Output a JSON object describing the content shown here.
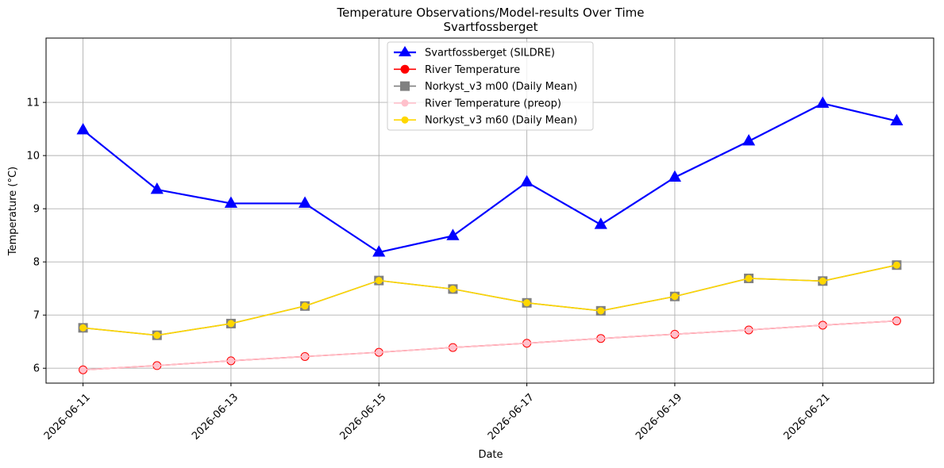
{
  "chart_data": {
    "type": "line",
    "title": "Temperature Observations/Model-results Over Time",
    "subtitle": "Svartfossberget",
    "xlabel": "Date",
    "ylabel": "Temperature (°C)",
    "x": [
      "2026-06-11",
      "2026-06-12",
      "2026-06-13",
      "2026-06-14",
      "2026-06-15",
      "2026-06-16",
      "2026-06-17",
      "2026-06-18",
      "2026-06-19",
      "2026-06-20",
      "2026-06-21",
      "2026-06-22"
    ],
    "x_tick_labels": [
      "2026-06-11",
      "2026-06-13",
      "2026-06-15",
      "2026-06-17",
      "2026-06-19",
      "2026-06-21"
    ],
    "xlim": [
      "2026-06-10.5",
      "2026-06-22.5"
    ],
    "ylim": [
      5.72,
      12.21
    ],
    "y_ticks": [
      6,
      7,
      8,
      9,
      10,
      11
    ],
    "grid": true,
    "legend_position": "upper center",
    "series": [
      {
        "name": "Svartfossberget (SILDRE)",
        "color": "#0000ff",
        "marker": "triangle",
        "values": [
          10.48,
          9.36,
          9.1,
          9.1,
          8.18,
          8.49,
          9.5,
          8.7,
          9.59,
          10.27,
          10.98,
          10.65
        ]
      },
      {
        "name": "River Temperature",
        "color": "#ff0000",
        "marker": "circle",
        "values": [
          5.97,
          6.05,
          6.14,
          6.22,
          6.3,
          6.39,
          6.47,
          6.56,
          6.64,
          6.72,
          6.81,
          6.89
        ]
      },
      {
        "name": "Norkyst_v3 m00 (Daily Mean)",
        "color": "#808080",
        "marker": "square",
        "values": [
          6.76,
          6.62,
          6.84,
          7.17,
          7.65,
          7.49,
          7.23,
          7.08,
          7.35,
          7.69,
          7.64,
          7.94
        ]
      },
      {
        "name": "River Temperature (preop)",
        "color": "#ffc0cb",
        "marker": "circle",
        "values": [
          5.97,
          6.05,
          6.14,
          6.22,
          6.3,
          6.39,
          6.47,
          6.56,
          6.64,
          6.72,
          6.81,
          6.89
        ]
      },
      {
        "name": "Norkyst_v3 m60 (Daily Mean)",
        "color": "#ffd700",
        "marker": "circle",
        "values": [
          6.76,
          6.62,
          6.84,
          7.17,
          7.65,
          7.49,
          7.23,
          7.08,
          7.35,
          7.69,
          7.64,
          7.94
        ]
      }
    ]
  }
}
